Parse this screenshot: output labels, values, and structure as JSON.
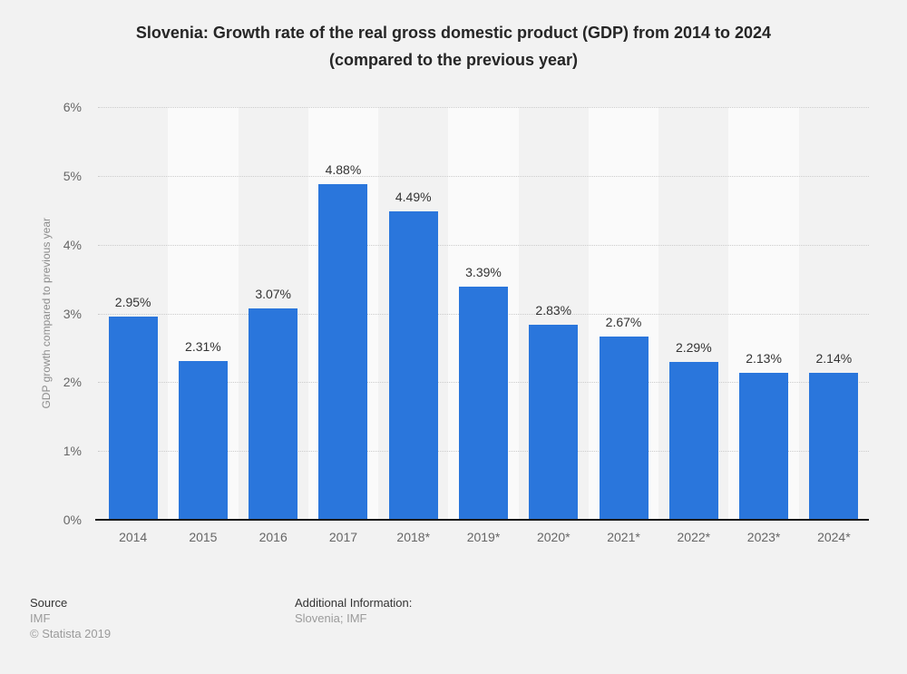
{
  "header": {
    "title_line1": "Slovenia: Growth rate of the real gross domestic product (GDP) from 2014 to 2024",
    "title_line2": "(compared to the previous year)"
  },
  "chart_data": {
    "type": "bar",
    "title": "Slovenia: Growth rate of the real gross domestic product (GDP) from 2014 to 2024 (compared to the previous year)",
    "categories": [
      "2014",
      "2015",
      "2016",
      "2017",
      "2018*",
      "2019*",
      "2020*",
      "2021*",
      "2022*",
      "2023*",
      "2024*"
    ],
    "values": [
      2.95,
      2.31,
      3.07,
      4.88,
      4.49,
      3.39,
      2.83,
      2.67,
      2.29,
      2.13,
      2.14
    ],
    "value_labels": [
      "2.95%",
      "2.31%",
      "3.07%",
      "4.88%",
      "4.49%",
      "3.39%",
      "2.83%",
      "2.67%",
      "2.29%",
      "2.13%",
      "2.14%"
    ],
    "xlabel": "",
    "ylabel": "GDP growth compared to previous year",
    "ylim": [
      0,
      6
    ],
    "y_tick_labels": [
      "0%",
      "1%",
      "2%",
      "3%",
      "4%",
      "5%",
      "6%"
    ],
    "grid": "horizontal-dotted",
    "legend": "none",
    "bar_color": "#2a76dc",
    "band_color_even": "#f2f2f2",
    "band_color_odd": "#fafafa"
  },
  "footer": {
    "source_label": "Source",
    "source_value": "IMF",
    "copyright": "© Statista 2019",
    "additional_label": "Additional Information:",
    "additional_value": "Slovenia; IMF"
  }
}
